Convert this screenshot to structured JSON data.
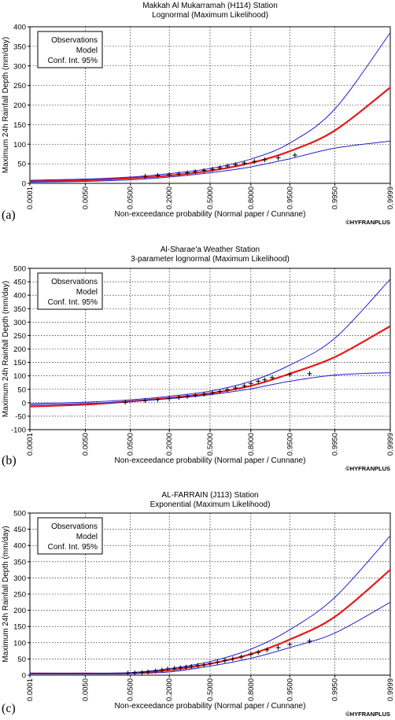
{
  "chart_data": [
    {
      "type": "line",
      "panel_label": "(a)",
      "title": "Makkah Al Mukarramah (H114) Station",
      "subtitle": "Lognormal (Maximum Likelihood)",
      "xlabel": "Non-exceedance probability (Normal paper / Cunnane)",
      "ylabel": "Maximum 24h Rainfall Depth (mm/day)",
      "watermark": "©HYFRANPLUS",
      "x_scale": "normal-probability",
      "x_ticks": [
        "0.0001",
        "0.0050",
        "0.0500",
        "0.2000",
        "0.5000",
        "0.8000",
        "0.9500",
        "0.9950",
        "0.9999"
      ],
      "ylim": [
        0,
        400
      ],
      "y_ticks": [
        "0",
        "50",
        "100",
        "150",
        "200",
        "250",
        "300",
        "350",
        "400"
      ],
      "grid": true,
      "legend": {
        "placement": "top-left",
        "entries": [
          "Observations",
          "Model",
          "Conf. Int. 95%"
        ]
      },
      "series": [
        {
          "name": "Model",
          "color": "#e41a1c",
          "kind": "fit",
          "points": [
            [
              0.0001,
              5
            ],
            [
              0.005,
              8
            ],
            [
              0.05,
              13
            ],
            [
              0.2,
              20
            ],
            [
              0.5,
              32
            ],
            [
              0.8,
              52
            ],
            [
              0.95,
              82
            ],
            [
              0.995,
              135
            ],
            [
              0.9999,
              245
            ]
          ]
        },
        {
          "name": "Conf. Int. 95%",
          "color": "#2222cc",
          "kind": "ci-upper",
          "points": [
            [
              0.0001,
              8
            ],
            [
              0.005,
              11
            ],
            [
              0.05,
              16
            ],
            [
              0.2,
              25
            ],
            [
              0.5,
              38
            ],
            [
              0.8,
              62
            ],
            [
              0.95,
              103
            ],
            [
              0.995,
              190
            ],
            [
              0.9999,
              385
            ]
          ]
        },
        {
          "name": "Conf. Int. 95%",
          "color": "#2222cc",
          "kind": "ci-lower",
          "points": [
            [
              0.0001,
              3
            ],
            [
              0.005,
              5
            ],
            [
              0.05,
              9
            ],
            [
              0.2,
              16
            ],
            [
              0.5,
              27
            ],
            [
              0.8,
              42
            ],
            [
              0.95,
              63
            ],
            [
              0.995,
              90
            ],
            [
              0.9999,
              108
            ]
          ]
        },
        {
          "name": "Observations",
          "color": "#000000",
          "kind": "observations",
          "points": [
            [
              0.09,
              18
            ],
            [
              0.14,
              20
            ],
            [
              0.2,
              22
            ],
            [
              0.26,
              24
            ],
            [
              0.32,
              27
            ],
            [
              0.38,
              30
            ],
            [
              0.45,
              33
            ],
            [
              0.52,
              36
            ],
            [
              0.58,
              40
            ],
            [
              0.64,
              44
            ],
            [
              0.7,
              48
            ],
            [
              0.76,
              52
            ],
            [
              0.82,
              56
            ],
            [
              0.87,
              60
            ],
            [
              0.92,
              65
            ],
            [
              0.96,
              72
            ]
          ]
        }
      ]
    },
    {
      "type": "line",
      "panel_label": "(b)",
      "title": "Al-Sharae'a Weather Station",
      "subtitle": "3-parameter lognormal (Maximum Likelihood)",
      "xlabel": "Non-exceedance probability (Normal paper / Cunnane)",
      "ylabel": "Maximum 24h Rainfall Depth (mm/day)",
      "watermark": "©HYFRANPLUS",
      "x_scale": "normal-probability",
      "x_ticks": [
        "0.0001",
        "0.0050",
        "0.0500",
        "0.2000",
        "0.5000",
        "0.8000",
        "0.9500",
        "0.9950",
        "0.9999"
      ],
      "ylim": [
        -100,
        500
      ],
      "y_ticks": [
        "-100",
        "-50",
        "0",
        "50",
        "100",
        "150",
        "200",
        "250",
        "300",
        "350",
        "400",
        "450",
        "500"
      ],
      "grid": true,
      "legend": {
        "placement": "top-left",
        "entries": [
          "Observations",
          "Model",
          "Conf. Int. 95%"
        ]
      },
      "series": [
        {
          "name": "Model",
          "color": "#e41a1c",
          "kind": "fit",
          "points": [
            [
              0.0001,
              -14
            ],
            [
              0.005,
              -7
            ],
            [
              0.05,
              5
            ],
            [
              0.2,
              18
            ],
            [
              0.5,
              35
            ],
            [
              0.8,
              63
            ],
            [
              0.95,
              108
            ],
            [
              0.995,
              170
            ],
            [
              0.9999,
              285
            ]
          ]
        },
        {
          "name": "Conf. Int. 95%",
          "color": "#2222cc",
          "kind": "ci-upper",
          "points": [
            [
              0.0001,
              -3
            ],
            [
              0.005,
              2
            ],
            [
              0.05,
              11
            ],
            [
              0.2,
              24
            ],
            [
              0.5,
              43
            ],
            [
              0.8,
              80
            ],
            [
              0.95,
              140
            ],
            [
              0.995,
              240
            ],
            [
              0.9999,
              460
            ]
          ]
        },
        {
          "name": "Conf. Int. 95%",
          "color": "#2222cc",
          "kind": "ci-lower",
          "points": [
            [
              0.0001,
              -8
            ],
            [
              0.005,
              -3
            ],
            [
              0.05,
              5
            ],
            [
              0.2,
              15
            ],
            [
              0.5,
              30
            ],
            [
              0.8,
              52
            ],
            [
              0.95,
              80
            ],
            [
              0.995,
              103
            ],
            [
              0.9999,
              112
            ]
          ]
        },
        {
          "name": "Observations",
          "color": "#000000",
          "kind": "observations",
          "points": [
            [
              0.04,
              2
            ],
            [
              0.09,
              8
            ],
            [
              0.14,
              12
            ],
            [
              0.2,
              16
            ],
            [
              0.26,
              20
            ],
            [
              0.32,
              24
            ],
            [
              0.38,
              28
            ],
            [
              0.45,
              32
            ],
            [
              0.52,
              37
            ],
            [
              0.58,
              42
            ],
            [
              0.64,
              48
            ],
            [
              0.7,
              55
            ],
            [
              0.76,
              63
            ],
            [
              0.8,
              72
            ],
            [
              0.84,
              80
            ],
            [
              0.87,
              85
            ],
            [
              0.9,
              93
            ],
            [
              0.95,
              105
            ],
            [
              0.98,
              108
            ]
          ]
        }
      ]
    },
    {
      "type": "line",
      "panel_label": "(c)",
      "title": "AL-FARRAIN (J113) Station",
      "subtitle": "Exponential (Maximum Likelihood)",
      "xlabel": "Non-exceedance probability (Normal paper / Cunnane)",
      "ylabel": "Maximum 24h Rainfall Depth (mm/day)",
      "watermark": "©HYFRANPLUS",
      "x_scale": "normal-probability",
      "x_ticks": [
        "0.0001",
        "0.0050",
        "0.0500",
        "0.2000",
        "0.5000",
        "0.8000",
        "0.9500",
        "0.9950",
        "0.9999"
      ],
      "ylim": [
        0,
        500
      ],
      "y_ticks": [
        "0",
        "50",
        "100",
        "150",
        "200",
        "250",
        "300",
        "350",
        "400",
        "450",
        "500"
      ],
      "grid": true,
      "legend": {
        "placement": "top-left",
        "entries": [
          "Observations",
          "Model",
          "Conf. Int. 95%"
        ]
      },
      "series": [
        {
          "name": "Model",
          "color": "#e41a1c",
          "kind": "fit",
          "points": [
            [
              0.0001,
              5
            ],
            [
              0.005,
              5
            ],
            [
              0.05,
              6
            ],
            [
              0.2,
              15
            ],
            [
              0.5,
              35
            ],
            [
              0.8,
              65
            ],
            [
              0.95,
              110
            ],
            [
              0.995,
              180
            ],
            [
              0.9999,
              325
            ]
          ]
        },
        {
          "name": "Conf. Int. 95%",
          "color": "#2222cc",
          "kind": "ci-upper",
          "points": [
            [
              0.0001,
              6
            ],
            [
              0.005,
              6
            ],
            [
              0.05,
              8
            ],
            [
              0.2,
              20
            ],
            [
              0.5,
              42
            ],
            [
              0.8,
              80
            ],
            [
              0.95,
              140
            ],
            [
              0.995,
              240
            ],
            [
              0.9999,
              430
            ]
          ]
        },
        {
          "name": "Conf. Int. 95%",
          "color": "#2222cc",
          "kind": "ci-lower",
          "points": [
            [
              0.0001,
              4
            ],
            [
              0.005,
              4
            ],
            [
              0.05,
              5
            ],
            [
              0.2,
              10
            ],
            [
              0.5,
              28
            ],
            [
              0.8,
              52
            ],
            [
              0.95,
              85
            ],
            [
              0.995,
              130
            ],
            [
              0.9999,
              225
            ]
          ]
        },
        {
          "name": "Observations",
          "color": "#000000",
          "kind": "observations",
          "points": [
            [
              0.045,
              6
            ],
            [
              0.06,
              7
            ],
            [
              0.08,
              8
            ],
            [
              0.1,
              10
            ],
            [
              0.13,
              13
            ],
            [
              0.16,
              16
            ],
            [
              0.19,
              19
            ],
            [
              0.23,
              21
            ],
            [
              0.27,
              23
            ],
            [
              0.31,
              25
            ],
            [
              0.35,
              27
            ],
            [
              0.4,
              30
            ],
            [
              0.45,
              32
            ],
            [
              0.5,
              36
            ],
            [
              0.56,
              40
            ],
            [
              0.62,
              45
            ],
            [
              0.68,
              50
            ],
            [
              0.74,
              56
            ],
            [
              0.8,
              64
            ],
            [
              0.84,
              70
            ],
            [
              0.88,
              78
            ],
            [
              0.92,
              85
            ],
            [
              0.95,
              95
            ],
            [
              0.98,
              105
            ]
          ]
        }
      ]
    }
  ]
}
